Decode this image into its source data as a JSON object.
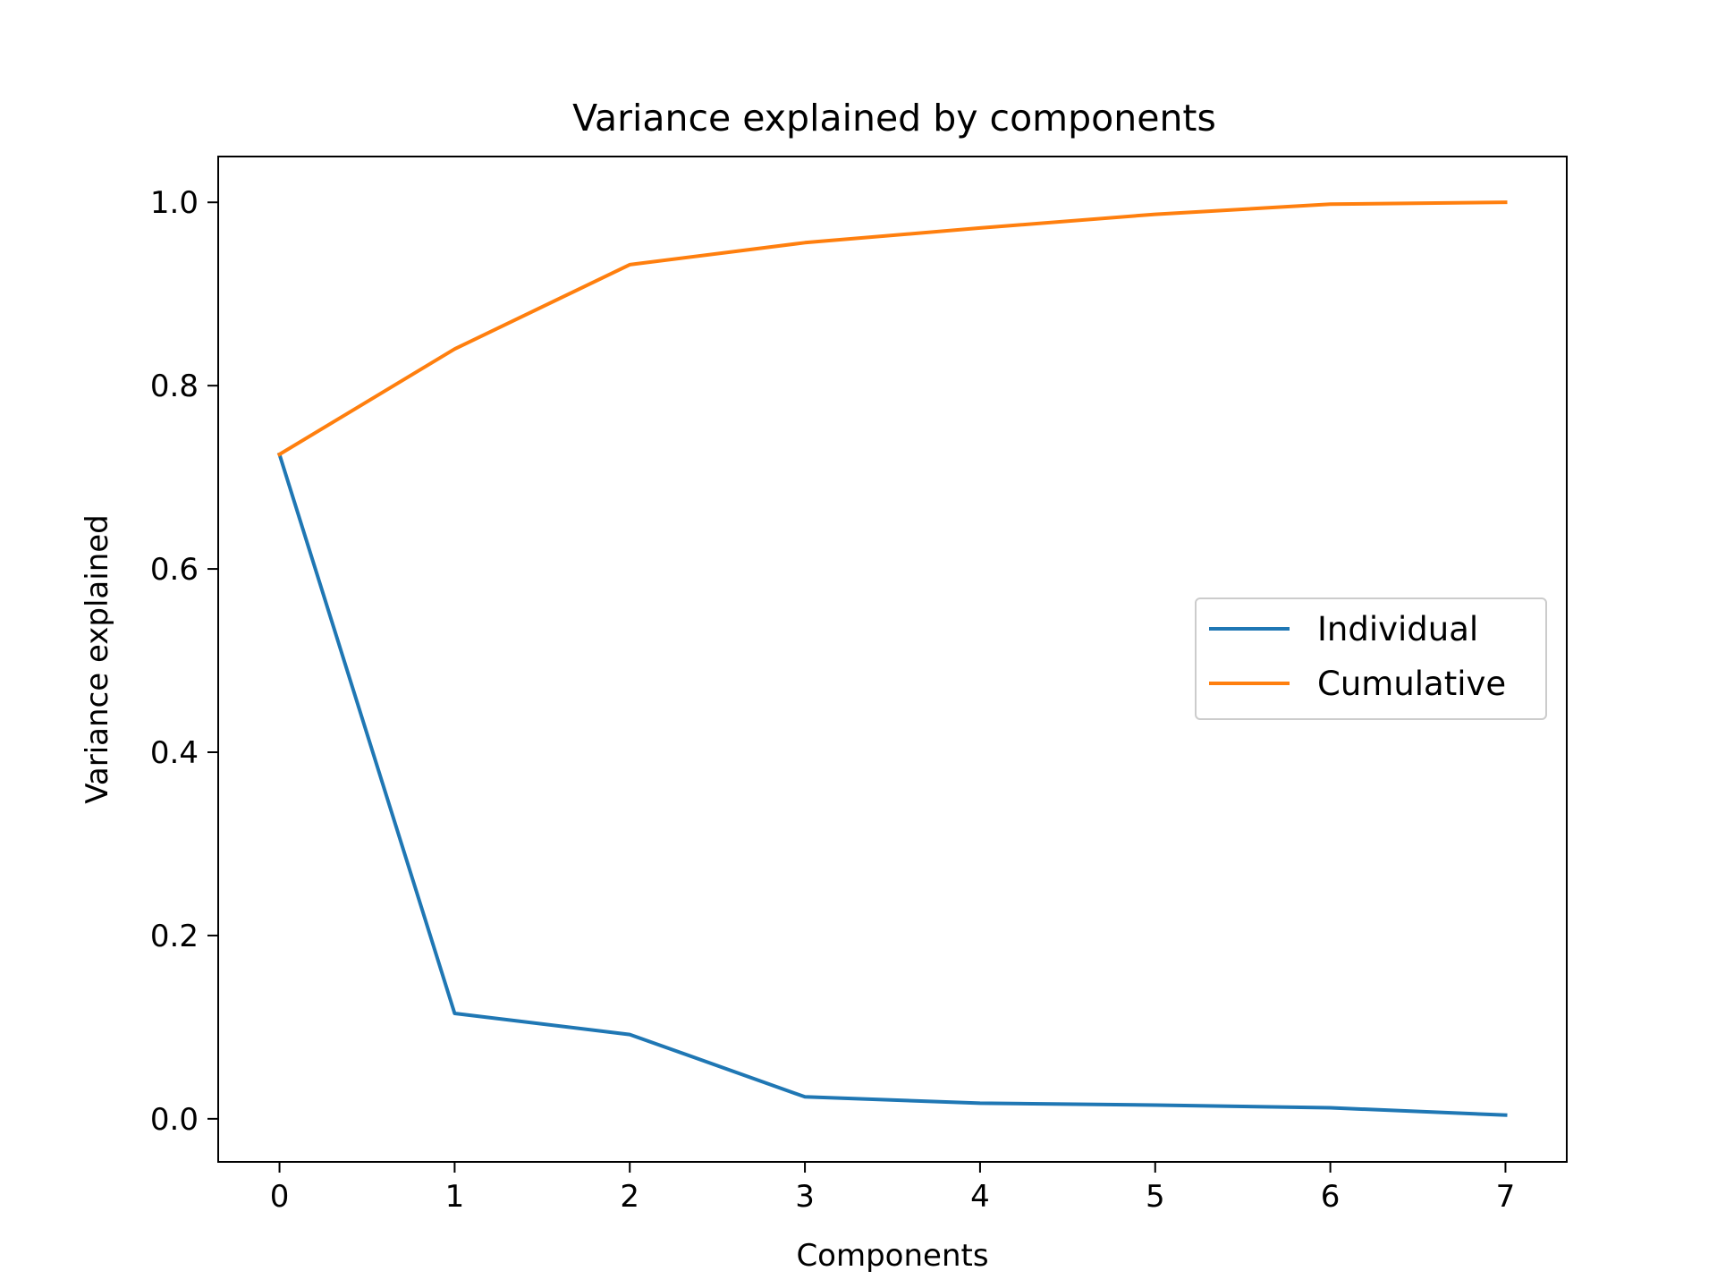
{
  "chart_data": {
    "type": "line",
    "title": "Variance explained by components",
    "xlabel": "Components",
    "ylabel": "Variance explained",
    "x": [
      0,
      1,
      2,
      3,
      4,
      5,
      6,
      7
    ],
    "xlim": [
      -0.35,
      7.35
    ],
    "ylim": [
      -0.047,
      1.05
    ],
    "xticks": [
      "0",
      "1",
      "2",
      "3",
      "4",
      "5",
      "6",
      "7"
    ],
    "yticks": [
      "0.0",
      "0.2",
      "0.4",
      "0.6",
      "0.8",
      "1.0"
    ],
    "grid": false,
    "legend_position": "center-right",
    "series": [
      {
        "name": "Individual",
        "color": "#1f77b4",
        "values": [
          0.725,
          0.115,
          0.092,
          0.024,
          0.017,
          0.015,
          0.012,
          0.004
        ]
      },
      {
        "name": "Cumulative",
        "color": "#ff7f0e",
        "values": [
          0.725,
          0.84,
          0.932,
          0.956,
          0.972,
          0.987,
          0.998,
          1.0
        ]
      }
    ]
  }
}
